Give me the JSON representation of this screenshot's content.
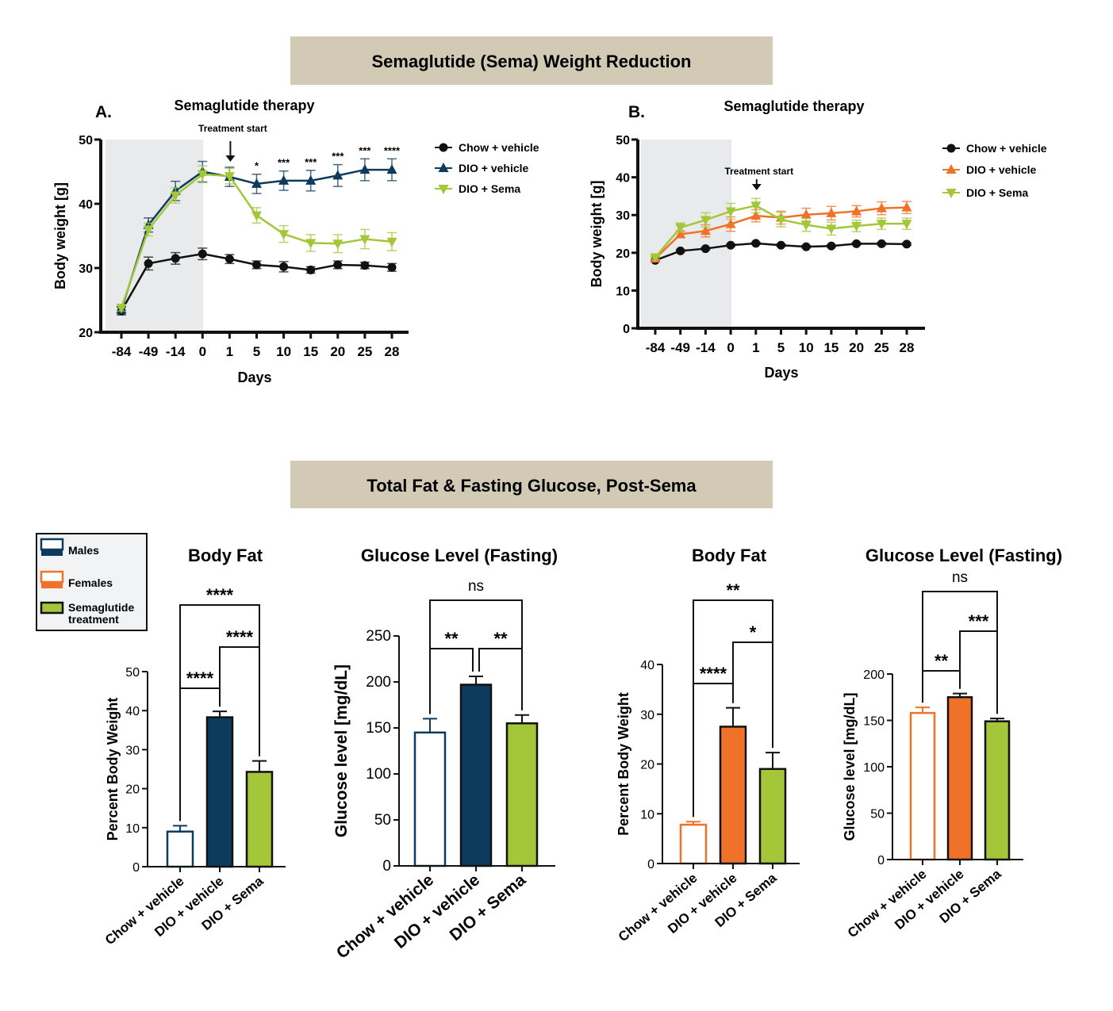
{
  "headers": [
    "Semaglutide (Sema) Weight Reduction",
    "Total Fat & Fasting Glucose, Post-Sema"
  ],
  "colors": {
    "header_bg": "#d3cab5",
    "chow": "#111111",
    "male": "#0d3b5e",
    "female": "#f07228",
    "sema": "#a4c639",
    "shade": "#e9eaec"
  },
  "legend": {
    "items": [
      {
        "label": "Males",
        "fill": "#ffffff",
        "stroke": "#0d3b5e",
        "bar": "#0d3b5e"
      },
      {
        "label": "Females",
        "fill": "#ffffff",
        "stroke": "#f07228",
        "bar": "#f07228"
      },
      {
        "label": "Semaglutide treatment",
        "fill": "#a4c639",
        "stroke": "#111111",
        "bar": null
      }
    ]
  },
  "chart_data": [
    {
      "type": "line",
      "panel": "A.",
      "title": "Semaglutide therapy",
      "xlabel": "Days",
      "ylabel": "Body weight [g]",
      "ylim": [
        20,
        50
      ],
      "yticks": [
        20,
        30,
        40,
        50
      ],
      "categories": [
        "-84",
        "-49",
        "-14",
        "0",
        "1",
        "5",
        "10",
        "15",
        "20",
        "25",
        "28"
      ],
      "shaded_until": "0",
      "annotation": "Treatment start",
      "annotation_at": "1",
      "series": [
        {
          "name": "Chow + vehicle",
          "marker": "circle",
          "color": "#111111",
          "values": [
            23.3,
            30.7,
            31.5,
            32.2,
            31.4,
            30.5,
            30.2,
            29.7,
            30.5,
            30.4,
            30.1
          ],
          "err": [
            0.6,
            1,
            0.9,
            0.9,
            0.7,
            0.6,
            0.8,
            0.5,
            0.6,
            0.5,
            0.6
          ]
        },
        {
          "name": "DIO + vehicle",
          "marker": "triangle-up",
          "color": "#0d3b5e",
          "values": [
            23.5,
            36.7,
            42.0,
            45.0,
            44.2,
            43.1,
            43.6,
            43.6,
            44.4,
            45.3,
            45.3
          ],
          "err": [
            0.5,
            1.1,
            1.5,
            1.6,
            1.5,
            1.5,
            1.5,
            1.6,
            1.7,
            1.7,
            1.7
          ]
        },
        {
          "name": "DIO + Sema",
          "marker": "triangle-down",
          "color": "#a4c639",
          "values": [
            23.8,
            36.0,
            41.3,
            44.6,
            44.3,
            38.2,
            35.3,
            33.9,
            33.8,
            34.5,
            34.1
          ],
          "err": [
            0.5,
            1,
            1.2,
            1.3,
            1.2,
            1.2,
            1.3,
            1.3,
            1.4,
            1.5,
            1.4
          ]
        }
      ],
      "significance": [
        {
          "at": "5",
          "label": "*"
        },
        {
          "at": "10",
          "label": "***"
        },
        {
          "at": "15",
          "label": "***"
        },
        {
          "at": "20",
          "label": "***"
        },
        {
          "at": "25",
          "label": "***"
        },
        {
          "at": "28",
          "label": "****"
        }
      ]
    },
    {
      "type": "line",
      "panel": "B.",
      "title": "Semaglutide therapy",
      "xlabel": "Days",
      "ylabel": "Body weight [g]",
      "ylim": [
        0,
        50
      ],
      "yticks": [
        0,
        10,
        20,
        30,
        40,
        50
      ],
      "categories": [
        "-84",
        "-49",
        "-14",
        "0",
        "1",
        "5",
        "10",
        "15",
        "20",
        "25",
        "28"
      ],
      "shaded_until": "0",
      "annotation": "Treatment start",
      "annotation_at": "1",
      "series": [
        {
          "name": "Chow + vehicle",
          "marker": "circle",
          "color": "#111111",
          "values": [
            18.0,
            20.5,
            21.1,
            22.0,
            22.5,
            22.0,
            21.6,
            21.8,
            22.4,
            22.4,
            22.3
          ],
          "err": [
            0.3,
            0.3,
            0.3,
            0.3,
            0.3,
            0.3,
            0.3,
            0.3,
            0.3,
            0.3,
            0.3
          ]
        },
        {
          "name": "DIO + vehicle",
          "marker": "triangle-up",
          "color": "#f07228",
          "values": [
            18.5,
            24.9,
            25.8,
            27.6,
            29.8,
            29.3,
            30.1,
            30.5,
            31.0,
            31.8,
            32.0
          ],
          "err": [
            0.5,
            0.9,
            1.6,
            1.9,
            1.6,
            1.7,
            1.7,
            1.8,
            1.5,
            1.7,
            1.6
          ]
        },
        {
          "name": "DIO + Sema",
          "marker": "triangle-down",
          "color": "#a4c639",
          "values": [
            18.8,
            26.7,
            28.7,
            31.0,
            32.5,
            28.8,
            27.4,
            26.4,
            27.1,
            27.7,
            27.7
          ],
          "err": [
            0.5,
            1.2,
            1.9,
            2.1,
            1.9,
            1.9,
            1.7,
            1.7,
            1.5,
            1.5,
            1.5
          ]
        }
      ],
      "significance": []
    },
    {
      "type": "bar",
      "title": "Body Fat",
      "ylabel": "Percent Body Weight",
      "ylim": [
        0,
        50
      ],
      "yticks": [
        0,
        10,
        20,
        30,
        40,
        50
      ],
      "categories": [
        "Chow + vehicle",
        "DIO + vehicle",
        "DIO + Sema"
      ],
      "values": [
        9.0,
        38.3,
        24.3
      ],
      "err": [
        1.5,
        1.5,
        2.8
      ],
      "fills": [
        "#ffffff",
        "#0d3b5e",
        "#a4c639"
      ],
      "strokes": [
        "#0d3b5e",
        "#111111",
        "#111111"
      ],
      "comparisons": [
        {
          "a": 0,
          "b": 1,
          "label": "****"
        },
        {
          "a": 1,
          "b": 2,
          "label": "****"
        },
        {
          "a": 0,
          "b": 2,
          "label": "****"
        }
      ]
    },
    {
      "type": "bar",
      "title": "Glucose Level (Fasting)",
      "ylabel": "Glucose level [mg/dL]",
      "ylim": [
        0,
        250
      ],
      "yticks": [
        0,
        50,
        100,
        150,
        200,
        250
      ],
      "categories": [
        "Chow + vehicle",
        "DIO + vehicle",
        "DIO + Sema"
      ],
      "values": [
        145,
        197,
        155
      ],
      "err": [
        15,
        9,
        9
      ],
      "fills": [
        "#ffffff",
        "#0d3b5e",
        "#a4c639"
      ],
      "strokes": [
        "#0d3b5e",
        "#111111",
        "#111111"
      ],
      "comparisons": [
        {
          "a": 0,
          "b": 1,
          "label": "**"
        },
        {
          "a": 1,
          "b": 2,
          "label": "**"
        },
        {
          "a": 0,
          "b": 2,
          "label": "ns"
        }
      ]
    },
    {
      "type": "bar",
      "title": "Body Fat",
      "ylabel": "Percent Body Weight",
      "ylim": [
        0,
        40
      ],
      "yticks": [
        0,
        10,
        20,
        30,
        40
      ],
      "categories": [
        "Chow + vehicle",
        "DIO + vehicle",
        "DIO + Sema"
      ],
      "values": [
        7.8,
        27.5,
        19.0
      ],
      "err": [
        0.6,
        3.8,
        3.3
      ],
      "fills": [
        "#ffffff",
        "#f07228",
        "#a4c639"
      ],
      "strokes": [
        "#f07228",
        "#111111",
        "#111111"
      ],
      "comparisons": [
        {
          "a": 0,
          "b": 1,
          "label": "****"
        },
        {
          "a": 1,
          "b": 2,
          "label": "*"
        },
        {
          "a": 0,
          "b": 2,
          "label": "**"
        }
      ]
    },
    {
      "type": "bar",
      "title": "Glucose Level (Fasting)",
      "ylabel": "Glucose level [mg/dL]",
      "ylim": [
        0,
        200
      ],
      "yticks": [
        0,
        50,
        100,
        150,
        200
      ],
      "categories": [
        "Chow + vehicle",
        "DIO + vehicle",
        "DIO + Sema"
      ],
      "values": [
        158,
        175,
        149
      ],
      "err": [
        6,
        4,
        3
      ],
      "fills": [
        "#ffffff",
        "#f07228",
        "#a4c639"
      ],
      "strokes": [
        "#f07228",
        "#111111",
        "#111111"
      ],
      "comparisons": [
        {
          "a": 0,
          "b": 1,
          "label": "**"
        },
        {
          "a": 1,
          "b": 2,
          "label": "***"
        },
        {
          "a": 0,
          "b": 2,
          "label": "ns"
        }
      ]
    }
  ]
}
